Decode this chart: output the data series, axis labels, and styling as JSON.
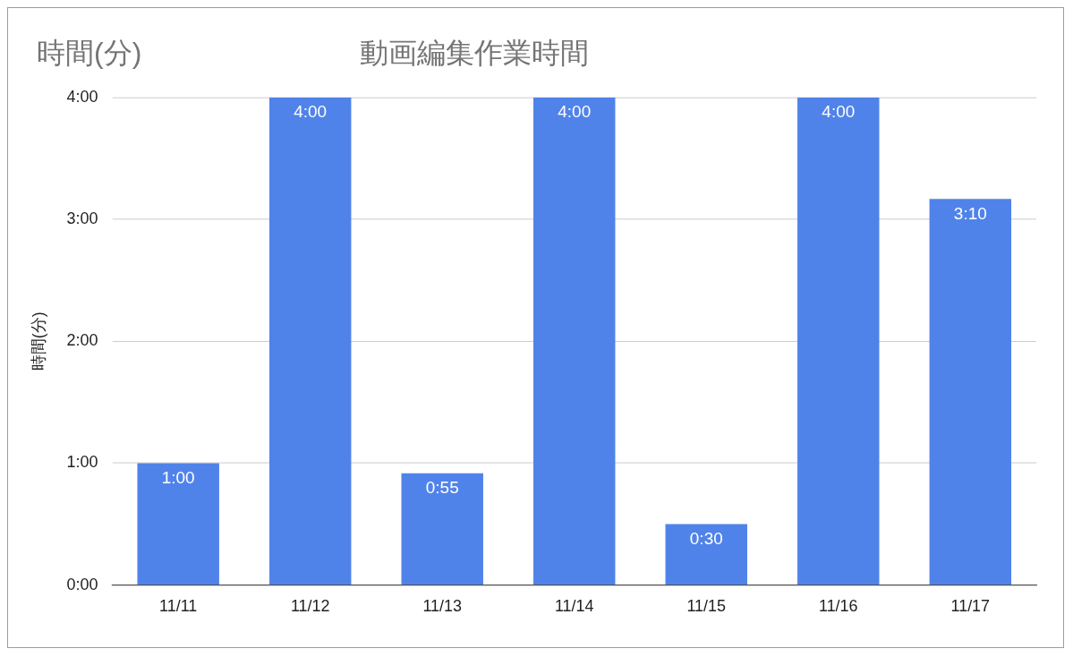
{
  "chart_data": {
    "type": "bar",
    "title": "動画編集作業時間",
    "annotations": [
      "時間(分)"
    ],
    "ylabel": "時間(分)",
    "categories": [
      "11/11",
      "11/12",
      "11/13",
      "11/14",
      "11/15",
      "11/16",
      "11/17"
    ],
    "values": [
      1,
      4,
      0.9167,
      4,
      0.5,
      4,
      3.1667
    ],
    "value_labels": [
      "1:00",
      "4:00",
      "0:55",
      "4:00",
      "0:30",
      "4:00",
      "3:10"
    ],
    "color": "#5083ea",
    "ylim": [
      0,
      4
    ],
    "yticks": [
      {
        "value": 0,
        "label": "0:00"
      },
      {
        "value": 1,
        "label": "1:00"
      },
      {
        "value": 2,
        "label": "2:00"
      },
      {
        "value": 3,
        "label": "3:00"
      },
      {
        "value": 4,
        "label": "4:00"
      }
    ],
    "grid": "y",
    "legend": false
  }
}
